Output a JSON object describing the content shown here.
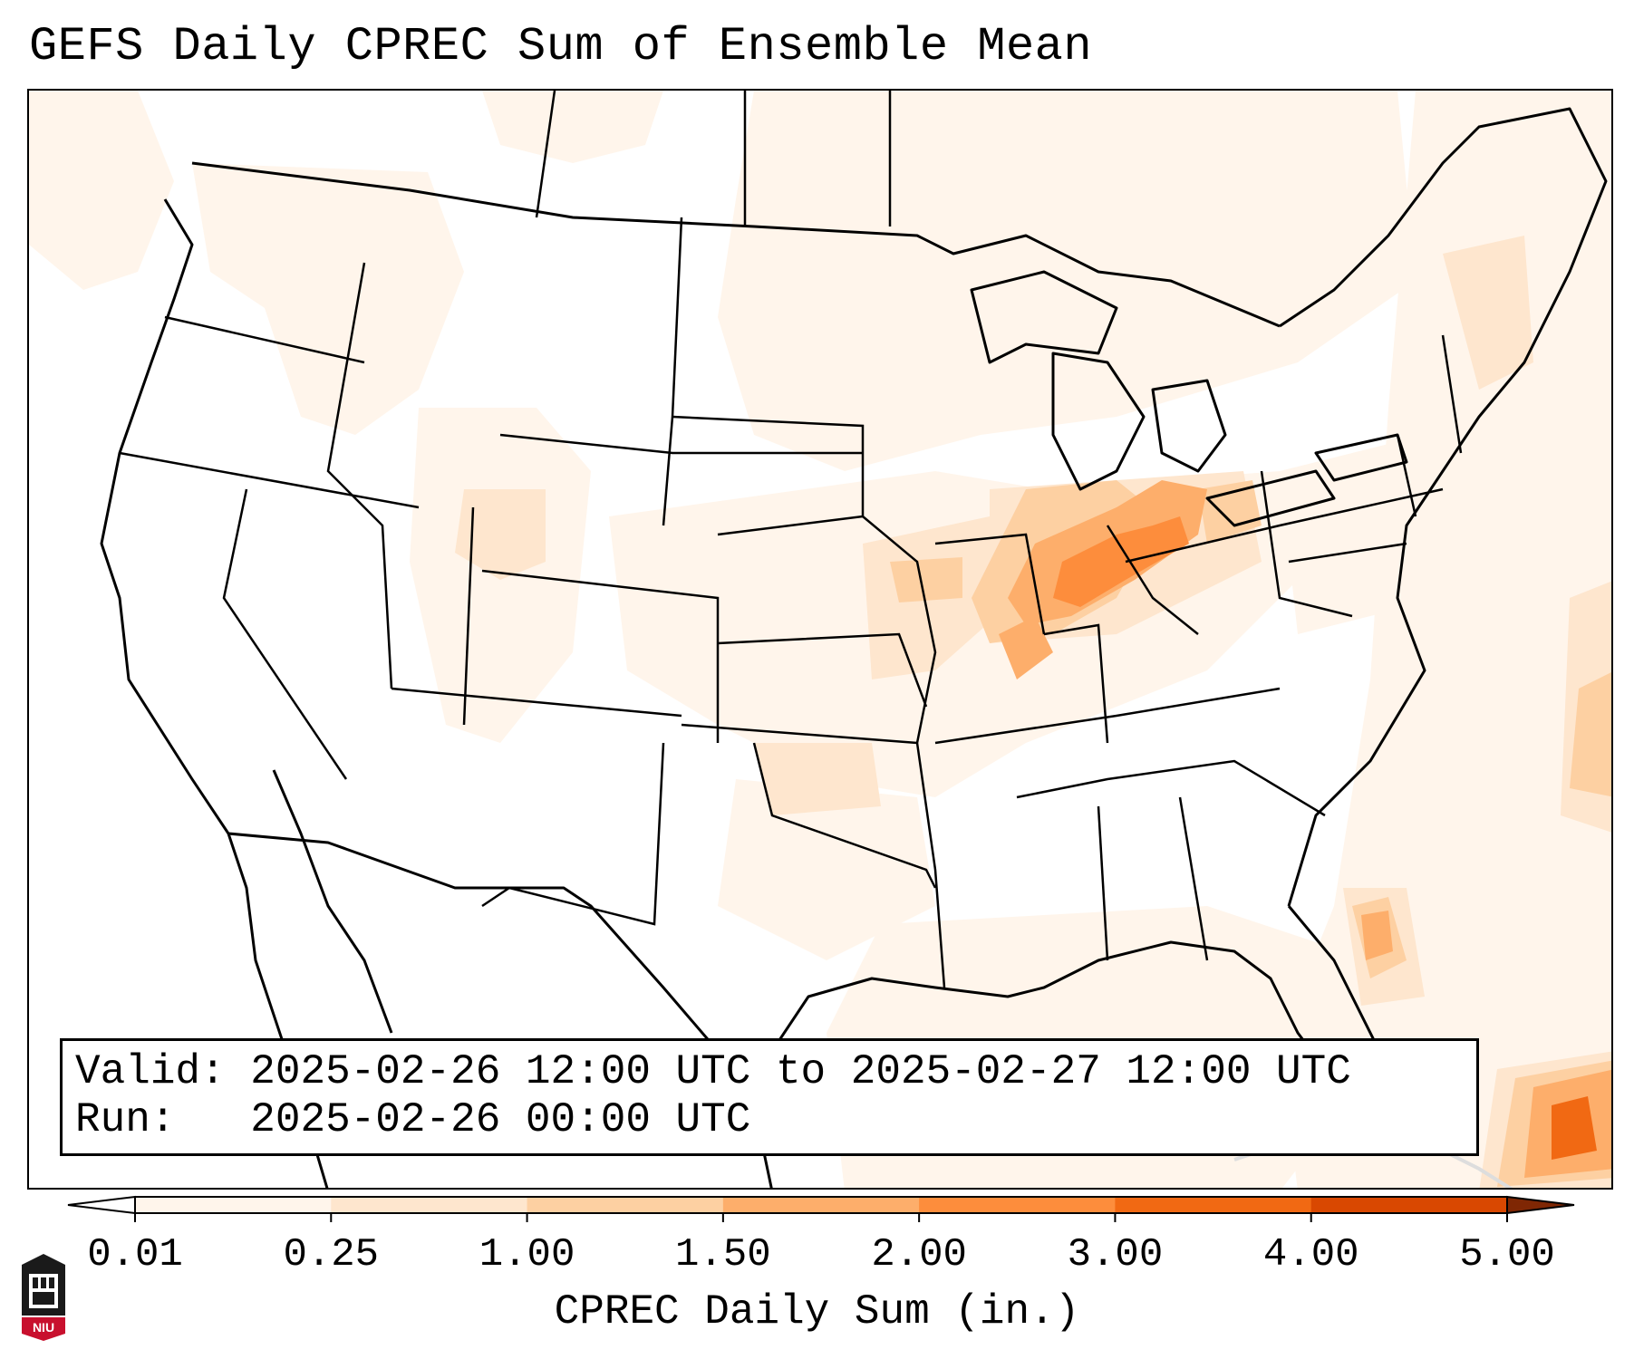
{
  "title": "GEFS Daily CPREC Sum of Ensemble Mean",
  "info": {
    "valid_label": "Valid:",
    "valid_value": "2025-02-26 12:00 UTC to 2025-02-27 12:00 UTC",
    "run_label": "Run:",
    "run_value": "2025-02-26 00:00 UTC"
  },
  "colorbar": {
    "label": "CPREC Daily Sum (in.)",
    "ticks": [
      "0.01",
      "0.25",
      "1.00",
      "1.50",
      "2.00",
      "3.00",
      "4.00",
      "5.00"
    ],
    "colors": [
      "#fff5eb",
      "#fee6ce",
      "#fdd0a2",
      "#fdae6b",
      "#fd8d3c",
      "#f16913",
      "#d94801",
      "#a63603"
    ],
    "under_color": "#ffffff",
    "over_color": "#7f2704"
  },
  "map": {
    "projection": "Lambert Conformal (CONUS)",
    "land_color": "#ffffff",
    "line_color": "#000000"
  },
  "logo": {
    "text": "NIU"
  }
}
